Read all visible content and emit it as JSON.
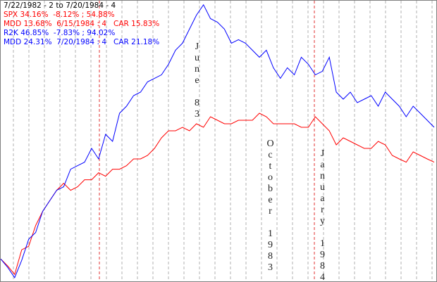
{
  "chart_data": {
    "type": "line",
    "date_range": "7/22/1982 - 2 to 7/20/1984 - 4",
    "ylim": [
      -8,
      95
    ],
    "annotations": [
      "June 83",
      "October 1983",
      "January 1984"
    ],
    "series": [
      {
        "name": "SPX",
        "color": "#ff0000",
        "stats": [
          "SPX 34.16%  -8.12% ; 54.88%",
          "MDD 13.68%  6/15/1984 : 4   CAR 15.83%"
        ],
        "values": [
          0,
          -2.6,
          -5.7,
          3.4,
          4.7,
          12.4,
          17.6,
          21.5,
          25.4,
          28.0,
          25.4,
          26.7,
          29.3,
          29.3,
          31.9,
          30.6,
          33.2,
          33.2,
          34.5,
          37.0,
          37.0,
          38.3,
          40.9,
          44.8,
          47.4,
          47.4,
          48.7,
          47.4,
          50.0,
          48.7,
          52.6,
          51.3,
          50.0,
          50.0,
          51.3,
          51.3,
          51.3,
          53.9,
          52.6,
          50.0,
          50.0,
          50.0,
          50.0,
          48.7,
          48.7,
          52.6,
          50.0,
          47.4,
          42.2,
          44.8,
          43.5,
          42.2,
          40.9,
          40.9,
          43.5,
          42.2,
          38.3,
          37.0,
          35.8,
          39.6,
          38.3,
          37.0,
          35.8
        ]
      },
      {
        "name": "R2K",
        "color": "#0000ff",
        "stats": [
          "R2K 46.85%  -7.83% ; 94.02%",
          "MDD 24.31%  7/20/1984 : 4   CAR 21.18%"
        ],
        "values": [
          0,
          -3.1,
          -6.9,
          -0.5,
          7.3,
          9.8,
          17.6,
          21.5,
          25.4,
          26.7,
          33.2,
          34.5,
          35.8,
          40.9,
          37.0,
          46.1,
          43.5,
          53.9,
          56.5,
          60.4,
          61.7,
          65.5,
          66.8,
          68.1,
          72.0,
          77.2,
          79.8,
          85.0,
          90.2,
          94.0,
          88.9,
          87.6,
          85.0,
          79.8,
          81.1,
          79.8,
          77.2,
          74.6,
          77.2,
          70.7,
          66.8,
          70.7,
          68.1,
          74.6,
          72.0,
          68.1,
          69.4,
          74.6,
          61.7,
          59.1,
          61.7,
          57.8,
          59.1,
          60.4,
          56.5,
          61.7,
          59.1,
          56.5,
          52.6,
          56.5,
          53.9,
          51.3,
          48.7
        ]
      }
    ]
  }
}
